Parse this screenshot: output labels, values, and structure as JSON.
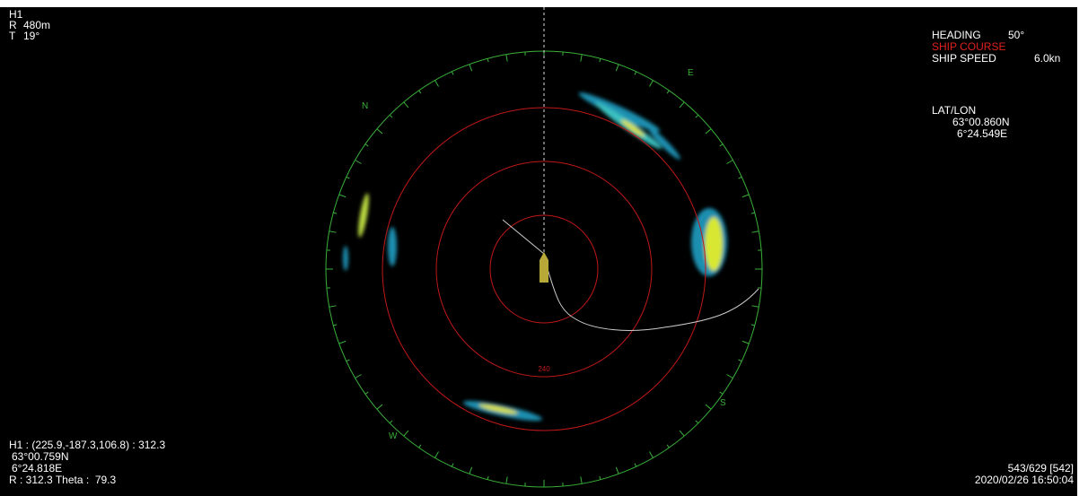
{
  "top_left": {
    "name": "H1",
    "range_label": "R",
    "range": "480m",
    "tilt_label": "T",
    "tilt": "19°"
  },
  "top_right": {
    "heading_label": "HEADING",
    "heading": "50°",
    "course_label": "SHIP COURSE",
    "speed_label": "SHIP SPEED",
    "speed": "6.0kn",
    "latlon_label": "LAT/LON",
    "lat": "63°00.860N",
    "lon": "6°24.549E"
  },
  "compass": {
    "n": "N",
    "e": "E",
    "s": "S",
    "w": "W",
    "ring_label": "240"
  },
  "bottom_left": {
    "target": "H1 : (225.9,-187.3,106.8) : 312.3",
    "lat": "63°00.759N",
    "lon": "6°24.818E",
    "polar": "R : 312.3 Theta :  79.3"
  },
  "bottom_right": {
    "frame": "543/629 [542]",
    "time": "2020/02/26 16:50:04"
  }
}
